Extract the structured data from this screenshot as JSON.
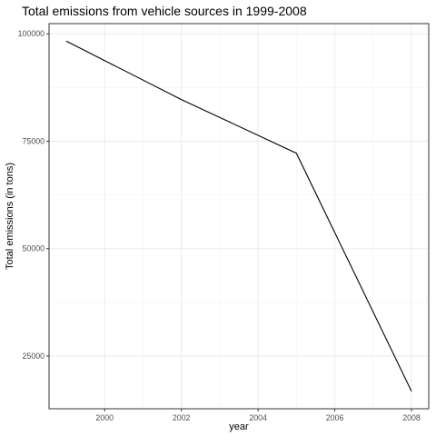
{
  "chart_data": {
    "type": "line",
    "title": "Total emissions from vehicle sources in 1999-2008",
    "xlabel": "year",
    "ylabel": "Total emissions (in tons)",
    "x": [
      1999,
      2002,
      2005,
      2008
    ],
    "series": [
      {
        "values": [
          98300,
          84700,
          72200,
          16800
        ],
        "color": "#000000"
      }
    ],
    "xlim": [
      1998.55,
      2008.45
    ],
    "ylim": [
      12725,
      102375
    ],
    "x_ticks": [
      2000,
      2002,
      2004,
      2006,
      2008
    ],
    "x_tick_labels": [
      "2000",
      "2002",
      "2004",
      "2006",
      "2008"
    ],
    "y_ticks": [
      25000,
      50000,
      75000,
      100000
    ],
    "y_tick_labels": [
      "25000",
      "50000",
      "75000",
      "100000"
    ],
    "grid": true,
    "theme": "bw"
  }
}
